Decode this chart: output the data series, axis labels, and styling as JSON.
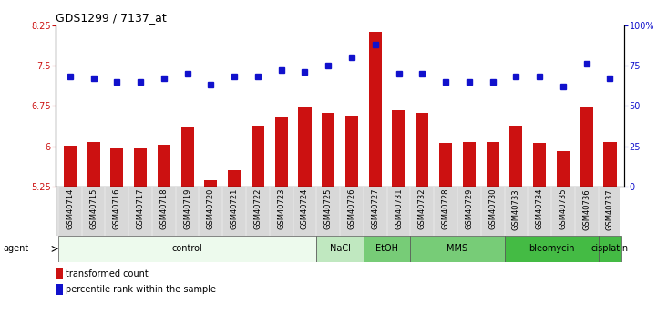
{
  "title": "GDS1299 / 7137_at",
  "samples": [
    "GSM40714",
    "GSM40715",
    "GSM40716",
    "GSM40717",
    "GSM40718",
    "GSM40719",
    "GSM40720",
    "GSM40721",
    "GSM40722",
    "GSM40723",
    "GSM40724",
    "GSM40725",
    "GSM40726",
    "GSM40727",
    "GSM40731",
    "GSM40732",
    "GSM40728",
    "GSM40729",
    "GSM40730",
    "GSM40733",
    "GSM40734",
    "GSM40735",
    "GSM40736",
    "GSM40737"
  ],
  "bar_values": [
    6.02,
    6.08,
    5.97,
    5.96,
    6.03,
    6.37,
    5.37,
    5.56,
    6.38,
    6.53,
    6.72,
    6.62,
    6.57,
    8.12,
    6.68,
    6.62,
    6.06,
    6.08,
    6.08,
    6.38,
    6.06,
    5.92,
    6.73,
    6.08
  ],
  "dot_values": [
    68,
    67,
    65,
    65,
    67,
    70,
    63,
    68,
    68,
    72,
    71,
    75,
    80,
    88,
    70,
    70,
    65,
    65,
    65,
    68,
    68,
    62,
    76,
    67
  ],
  "ylim_left": [
    5.25,
    8.25
  ],
  "ylim_right": [
    0,
    100
  ],
  "yticks_left": [
    5.25,
    6.0,
    6.75,
    7.5,
    8.25
  ],
  "yticks_right": [
    0,
    25,
    50,
    75,
    100
  ],
  "ytick_labels_left": [
    "5.25",
    "6",
    "6.75",
    "7.5",
    "8.25"
  ],
  "ytick_labels_right": [
    "0",
    "25",
    "50",
    "75",
    "100%"
  ],
  "hlines": [
    6.0,
    6.75,
    7.5
  ],
  "bar_color": "#cc1111",
  "dot_color": "#1111cc",
  "agent_groups": [
    {
      "label": "control",
      "start": 0,
      "end": 11,
      "color": "#edfaed"
    },
    {
      "label": "NaCl",
      "start": 11,
      "end": 13,
      "color": "#c8ecc8"
    },
    {
      "label": "EtOH",
      "start": 13,
      "end": 15,
      "color": "#88d888"
    },
    {
      "label": "MMS",
      "start": 15,
      "end": 19,
      "color": "#88d888"
    },
    {
      "label": "bleomycin",
      "start": 19,
      "end": 23,
      "color": "#55cc55"
    },
    {
      "label": "cisplatin",
      "start": 23,
      "end": 24,
      "color": "#55cc55"
    }
  ],
  "agent_label": "agent",
  "legend_bar_label": "transformed count",
  "legend_dot_label": "percentile rank within the sample",
  "title_fontsize": 9,
  "tick_fontsize": 7,
  "label_fontsize": 6,
  "agent_fontsize": 7,
  "legend_fontsize": 7
}
